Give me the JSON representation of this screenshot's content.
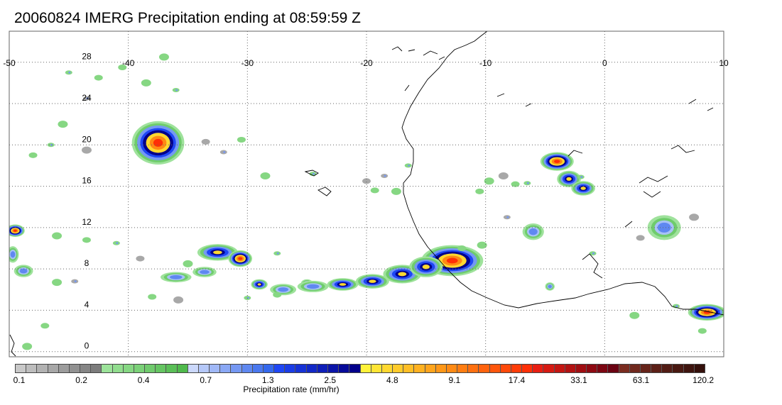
{
  "title": "20060824 IMERG Precipitation ending at 08:59:59 Z",
  "map": {
    "lon_range": [
      -50,
      10
    ],
    "lat_range": [
      -0.5,
      31
    ],
    "lon_ticks": [
      -50,
      -40,
      -30,
      -20,
      -10,
      0,
      10
    ],
    "lon_labels": [
      "-50",
      "-40",
      "-30",
      "-20",
      "-10",
      "0",
      "10"
    ],
    "lat_ticks": [
      0,
      4,
      8,
      12,
      16,
      20,
      24,
      28
    ],
    "lat_labels": [
      "0",
      "4",
      "8",
      "12",
      "16",
      "20",
      "24",
      "28"
    ],
    "grid": true,
    "grid_style": "dotted"
  },
  "storms": [
    {
      "lon": -37.5,
      "lat": 20.2,
      "rx": 2.2,
      "ry": 2.1,
      "peak": "high"
    },
    {
      "lon": -12.8,
      "lat": 8.8,
      "rx": 2.6,
      "ry": 1.5,
      "peak": "high"
    },
    {
      "lon": -4.0,
      "lat": 18.4,
      "rx": 1.4,
      "ry": 0.9,
      "peak": "high"
    },
    {
      "lon": -3.0,
      "lat": 16.7,
      "rx": 1.0,
      "ry": 0.8,
      "peak": "med"
    },
    {
      "lon": -1.8,
      "lat": 15.8,
      "rx": 1.0,
      "ry": 0.7,
      "peak": "med"
    },
    {
      "lon": 5.0,
      "lat": 12.0,
      "rx": 1.4,
      "ry": 1.2,
      "peak": "low"
    },
    {
      "lon": -6.0,
      "lat": 11.6,
      "rx": 0.9,
      "ry": 0.8,
      "peak": "low"
    },
    {
      "lon": -32.5,
      "lat": 9.6,
      "rx": 1.7,
      "ry": 0.8,
      "peak": "med"
    },
    {
      "lon": -30.6,
      "lat": 9.0,
      "rx": 1.0,
      "ry": 0.8,
      "peak": "high"
    },
    {
      "lon": -49.5,
      "lat": 11.7,
      "rx": 0.8,
      "ry": 0.6,
      "peak": "high"
    },
    {
      "lon": -49.7,
      "lat": 9.4,
      "rx": 0.5,
      "ry": 0.8,
      "peak": "low"
    },
    {
      "lon": -48.8,
      "lat": 7.8,
      "rx": 0.8,
      "ry": 0.6,
      "peak": "low"
    },
    {
      "lon": -36.0,
      "lat": 7.2,
      "rx": 1.3,
      "ry": 0.5,
      "peak": "low"
    },
    {
      "lon": -33.6,
      "lat": 7.7,
      "rx": 1.0,
      "ry": 0.5,
      "peak": "low"
    },
    {
      "lon": -29.0,
      "lat": 6.5,
      "rx": 0.7,
      "ry": 0.5,
      "peak": "med"
    },
    {
      "lon": 8.6,
      "lat": 3.8,
      "rx": 1.6,
      "ry": 0.8,
      "peak": "high"
    },
    {
      "lon": -4.6,
      "lat": 6.3,
      "rx": 0.4,
      "ry": 0.4,
      "peak": "low"
    },
    {
      "lon": -25.0,
      "lat": 6.6,
      "rx": 0.5,
      "ry": 0.4,
      "peak": "low"
    }
  ],
  "rainband": [
    {
      "lon": -27.0,
      "lat": 6.0,
      "rx": 1.1,
      "ry": 0.55,
      "peak": "low"
    },
    {
      "lon": -24.5,
      "lat": 6.3,
      "rx": 1.3,
      "ry": 0.55,
      "peak": "low"
    },
    {
      "lon": -22.0,
      "lat": 6.5,
      "rx": 1.3,
      "ry": 0.6,
      "peak": "med"
    },
    {
      "lon": -19.5,
      "lat": 6.8,
      "rx": 1.4,
      "ry": 0.7,
      "peak": "med"
    },
    {
      "lon": -17.0,
      "lat": 7.5,
      "rx": 1.6,
      "ry": 0.9,
      "peak": "med"
    },
    {
      "lon": -15.0,
      "lat": 8.2,
      "rx": 1.4,
      "ry": 1.0,
      "peak": "med"
    }
  ],
  "scattered_light": [
    [
      -43.5,
      24.5
    ],
    [
      -40.5,
      27.5
    ],
    [
      -37.0,
      28.5
    ],
    [
      -36.0,
      25.3
    ],
    [
      -33.5,
      20.3
    ],
    [
      -45.5,
      22.0
    ],
    [
      -46.5,
      20.0
    ],
    [
      -48.0,
      19.0
    ],
    [
      -43.5,
      19.5
    ],
    [
      -45.0,
      27.0
    ],
    [
      -42.5,
      26.5
    ],
    [
      -38.5,
      26.0
    ],
    [
      -32.0,
      19.3
    ],
    [
      -30.5,
      20.5
    ],
    [
      -28.5,
      17.0
    ],
    [
      -24.5,
      17.2
    ],
    [
      -20.0,
      16.5
    ],
    [
      -17.5,
      15.5
    ],
    [
      -16.5,
      18.0
    ],
    [
      -10.5,
      15.5
    ],
    [
      -8.5,
      17.0
    ],
    [
      -6.5,
      16.3
    ],
    [
      -12.0,
      10.0
    ],
    [
      -10.3,
      10.3
    ],
    [
      -8.2,
      13.0
    ],
    [
      -43.5,
      10.8
    ],
    [
      -46.0,
      11.2
    ],
    [
      -41.0,
      10.5
    ],
    [
      -39.0,
      9.0
    ],
    [
      -35.0,
      8.5
    ],
    [
      -27.5,
      9.5
    ],
    [
      -38.0,
      5.3
    ],
    [
      -35.8,
      5.0
    ],
    [
      -30.0,
      5.2
    ],
    [
      -27.5,
      5.5
    ],
    [
      -46.0,
      6.7
    ],
    [
      -44.5,
      6.8
    ],
    [
      -47.0,
      2.5
    ],
    [
      -48.5,
      0.5
    ],
    [
      -1.0,
      9.5
    ],
    [
      3.0,
      11.0
    ],
    [
      2.5,
      3.5
    ],
    [
      6.0,
      4.4
    ],
    [
      8.2,
      2.0
    ],
    [
      7.5,
      13.0
    ],
    [
      -2.0,
      16.9
    ],
    [
      -7.5,
      16.2
    ],
    [
      -9.7,
      16.5
    ],
    [
      -18.5,
      17.0
    ],
    [
      -19.3,
      15.6
    ]
  ],
  "colorbar": {
    "colors": [
      "#c8c8c8",
      "#bdbdbd",
      "#b2b2b2",
      "#a7a7a7",
      "#9c9c9c",
      "#919191",
      "#868686",
      "#7c7c7c",
      "#9ce39a",
      "#91dd8e",
      "#86d783",
      "#7bd178",
      "#70cb6d",
      "#65c562",
      "#5abf57",
      "#4fb94c",
      "#cbd8fb",
      "#b5c8f9",
      "#a0b8f7",
      "#8aa8f5",
      "#7598f3",
      "#5f88f1",
      "#4a78ef",
      "#3468ed",
      "#1e46f5",
      "#1a3ce6",
      "#1632d6",
      "#1228c7",
      "#0e1eb8",
      "#0a14a8",
      "#060a99",
      "#02008a",
      "#fff23a",
      "#ffe535",
      "#ffd830",
      "#ffcb2b",
      "#ffbe26",
      "#ffb121",
      "#ffa41c",
      "#ff9717",
      "#ff8a14",
      "#ff7d12",
      "#ff7010",
      "#ff630e",
      "#ff560c",
      "#ff490a",
      "#ff3c08",
      "#ff2f06",
      "#e81e12",
      "#d61a12",
      "#c41612",
      "#b21212",
      "#a00e12",
      "#8e0a12",
      "#7c0612",
      "#6a0212",
      "#7a2c20",
      "#70281d",
      "#66241a",
      "#5c2017",
      "#521c14",
      "#481811",
      "#3e140e",
      "#34100b"
    ],
    "labels": [
      "0.1",
      "0.2",
      "0.4",
      "0.7",
      "1.3",
      "2.5",
      "4.8",
      "9.1",
      "17.4",
      "33.1",
      "63.1",
      "120.2"
    ],
    "label": "Precipitation rate (mm/hr)"
  }
}
